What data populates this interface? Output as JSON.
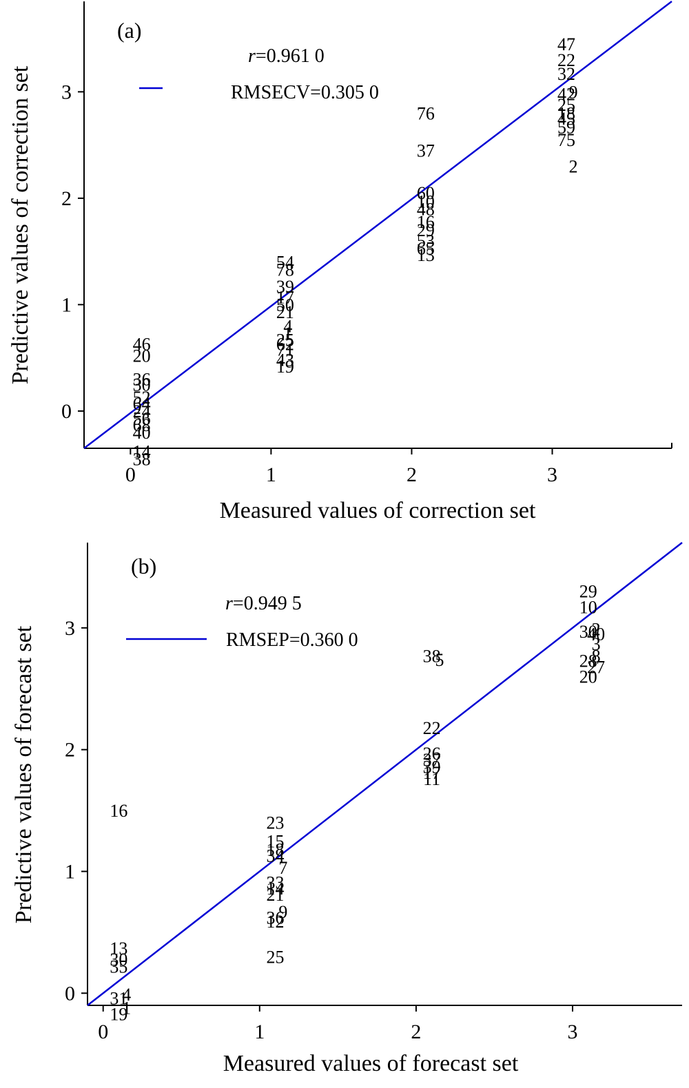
{
  "chart_data": [
    {
      "type": "scatter",
      "panel_label": "(a)",
      "xlabel": "Measured values of correction set",
      "ylabel": "Predictive values of correction set",
      "xlim": [
        -0.33,
        3.85
      ],
      "ylim": [
        -0.35,
        3.85
      ],
      "xticks": [
        0,
        1,
        2,
        3
      ],
      "yticks": [
        0,
        1,
        2,
        3
      ],
      "annotations": {
        "r_symbol": "r",
        "r_value": "=0.961 0",
        "rmse_text": "RMSECV=0.305 0"
      },
      "fit_line": {
        "x": [
          -0.33,
          3.85
        ],
        "y": [
          -0.35,
          3.85
        ]
      },
      "points": [
        {
          "label": "47",
          "x": 3.1,
          "y": 3.45
        },
        {
          "label": "22",
          "x": 3.1,
          "y": 3.3
        },
        {
          "label": "32",
          "x": 3.1,
          "y": 3.17
        },
        {
          "label": "42",
          "x": 3.1,
          "y": 2.98
        },
        {
          "label": "9",
          "x": 3.15,
          "y": 3.0
        },
        {
          "label": "25",
          "x": 3.1,
          "y": 2.88
        },
        {
          "label": "18",
          "x": 3.1,
          "y": 2.8
        },
        {
          "label": "45",
          "x": 3.1,
          "y": 2.75
        },
        {
          "label": "59",
          "x": 3.1,
          "y": 2.67
        },
        {
          "label": "75",
          "x": 3.1,
          "y": 2.55
        },
        {
          "label": "2",
          "x": 3.15,
          "y": 2.3
        },
        {
          "label": "76",
          "x": 2.1,
          "y": 2.8
        },
        {
          "label": "37",
          "x": 2.1,
          "y": 2.45
        },
        {
          "label": "60",
          "x": 2.1,
          "y": 2.05
        },
        {
          "label": "10",
          "x": 2.1,
          "y": 1.97
        },
        {
          "label": "48",
          "x": 2.1,
          "y": 1.9
        },
        {
          "label": "16",
          "x": 2.1,
          "y": 1.78
        },
        {
          "label": "29",
          "x": 2.1,
          "y": 1.7
        },
        {
          "label": "53",
          "x": 2.1,
          "y": 1.6
        },
        {
          "label": "65",
          "x": 2.1,
          "y": 1.53
        },
        {
          "label": "13",
          "x": 2.1,
          "y": 1.47
        },
        {
          "label": "54",
          "x": 1.1,
          "y": 1.4
        },
        {
          "label": "78",
          "x": 1.1,
          "y": 1.33
        },
        {
          "label": "39",
          "x": 1.1,
          "y": 1.17
        },
        {
          "label": "17",
          "x": 1.1,
          "y": 1.07
        },
        {
          "label": "50",
          "x": 1.1,
          "y": 1.0
        },
        {
          "label": "21",
          "x": 1.1,
          "y": 0.93
        },
        {
          "label": "4",
          "x": 1.12,
          "y": 0.8
        },
        {
          "label": "1",
          "x": 1.12,
          "y": 0.73
        },
        {
          "label": "25",
          "x": 1.1,
          "y": 0.67
        },
        {
          "label": "62",
          "x": 1.1,
          "y": 0.63
        },
        {
          "label": "71",
          "x": 1.1,
          "y": 0.58
        },
        {
          "label": "43",
          "x": 1.1,
          "y": 0.48
        },
        {
          "label": "19",
          "x": 1.1,
          "y": 0.42
        },
        {
          "label": "46",
          "x": 0.08,
          "y": 0.63
        },
        {
          "label": "20",
          "x": 0.08,
          "y": 0.52
        },
        {
          "label": "36",
          "x": 0.08,
          "y": 0.3
        },
        {
          "label": "30",
          "x": 0.08,
          "y": 0.25
        },
        {
          "label": "52",
          "x": 0.08,
          "y": 0.13
        },
        {
          "label": "64",
          "x": 0.08,
          "y": 0.07
        },
        {
          "label": "24",
          "x": 0.08,
          "y": 0.0
        },
        {
          "label": "56",
          "x": 0.08,
          "y": -0.07
        },
        {
          "label": "68",
          "x": 0.08,
          "y": -0.13
        },
        {
          "label": "40",
          "x": 0.08,
          "y": -0.2
        },
        {
          "label": "14",
          "x": 0.08,
          "y": -0.38
        },
        {
          "label": "38",
          "x": 0.08,
          "y": -0.45
        }
      ]
    },
    {
      "type": "scatter",
      "panel_label": "(b)",
      "xlabel": "Measured values of forecast set",
      "ylabel": "Predictive values of forecast set",
      "xlim": [
        -0.1,
        3.7
      ],
      "ylim": [
        -0.1,
        3.7
      ],
      "xticks": [
        0,
        1,
        2,
        3
      ],
      "yticks": [
        0,
        1,
        2,
        3
      ],
      "annotations": {
        "r_symbol": "r",
        "r_value": "=0.949 5",
        "rmse_text": "RMSEP=0.360 0"
      },
      "fit_line": {
        "x": [
          -0.1,
          3.7
        ],
        "y": [
          -0.1,
          3.7
        ]
      },
      "points": [
        {
          "label": "29",
          "x": 3.1,
          "y": 3.3
        },
        {
          "label": "10",
          "x": 3.1,
          "y": 3.17
        },
        {
          "label": "30",
          "x": 3.1,
          "y": 2.97
        },
        {
          "label": "2",
          "x": 3.15,
          "y": 2.99
        },
        {
          "label": "40",
          "x": 3.15,
          "y": 2.95
        },
        {
          "label": "3",
          "x": 3.15,
          "y": 2.87
        },
        {
          "label": "8",
          "x": 3.15,
          "y": 2.77
        },
        {
          "label": "28",
          "x": 3.1,
          "y": 2.73
        },
        {
          "label": "27",
          "x": 3.15,
          "y": 2.68
        },
        {
          "label": "20",
          "x": 3.1,
          "y": 2.6
        },
        {
          "label": "38",
          "x": 2.1,
          "y": 2.77
        },
        {
          "label": "5",
          "x": 2.15,
          "y": 2.74
        },
        {
          "label": "22",
          "x": 2.1,
          "y": 2.18
        },
        {
          "label": "26",
          "x": 2.1,
          "y": 1.97
        },
        {
          "label": "37",
          "x": 2.1,
          "y": 1.92
        },
        {
          "label": "39",
          "x": 2.1,
          "y": 1.86
        },
        {
          "label": "17",
          "x": 2.1,
          "y": 1.81
        },
        {
          "label": "11",
          "x": 2.1,
          "y": 1.76
        },
        {
          "label": "23",
          "x": 1.1,
          "y": 1.4
        },
        {
          "label": "15",
          "x": 1.1,
          "y": 1.25
        },
        {
          "label": "18",
          "x": 1.1,
          "y": 1.18
        },
        {
          "label": "34",
          "x": 1.1,
          "y": 1.13
        },
        {
          "label": "7",
          "x": 1.15,
          "y": 1.03
        },
        {
          "label": "33",
          "x": 1.1,
          "y": 0.91
        },
        {
          "label": "14",
          "x": 1.1,
          "y": 0.86
        },
        {
          "label": "21",
          "x": 1.1,
          "y": 0.81
        },
        {
          "label": "9",
          "x": 1.15,
          "y": 0.67
        },
        {
          "label": "36",
          "x": 1.1,
          "y": 0.62
        },
        {
          "label": "12",
          "x": 1.1,
          "y": 0.59
        },
        {
          "label": "25",
          "x": 1.1,
          "y": 0.3
        },
        {
          "label": "16",
          "x": 0.1,
          "y": 1.5
        },
        {
          "label": "13",
          "x": 0.1,
          "y": 0.37
        },
        {
          "label": "30",
          "x": 0.1,
          "y": 0.28
        },
        {
          "label": "35",
          "x": 0.1,
          "y": 0.22
        },
        {
          "label": "4",
          "x": 0.15,
          "y": -0.01
        },
        {
          "label": "31",
          "x": 0.1,
          "y": -0.04
        },
        {
          "label": "1",
          "x": 0.15,
          "y": -0.12
        },
        {
          "label": "19",
          "x": 0.1,
          "y": -0.17
        }
      ]
    }
  ]
}
